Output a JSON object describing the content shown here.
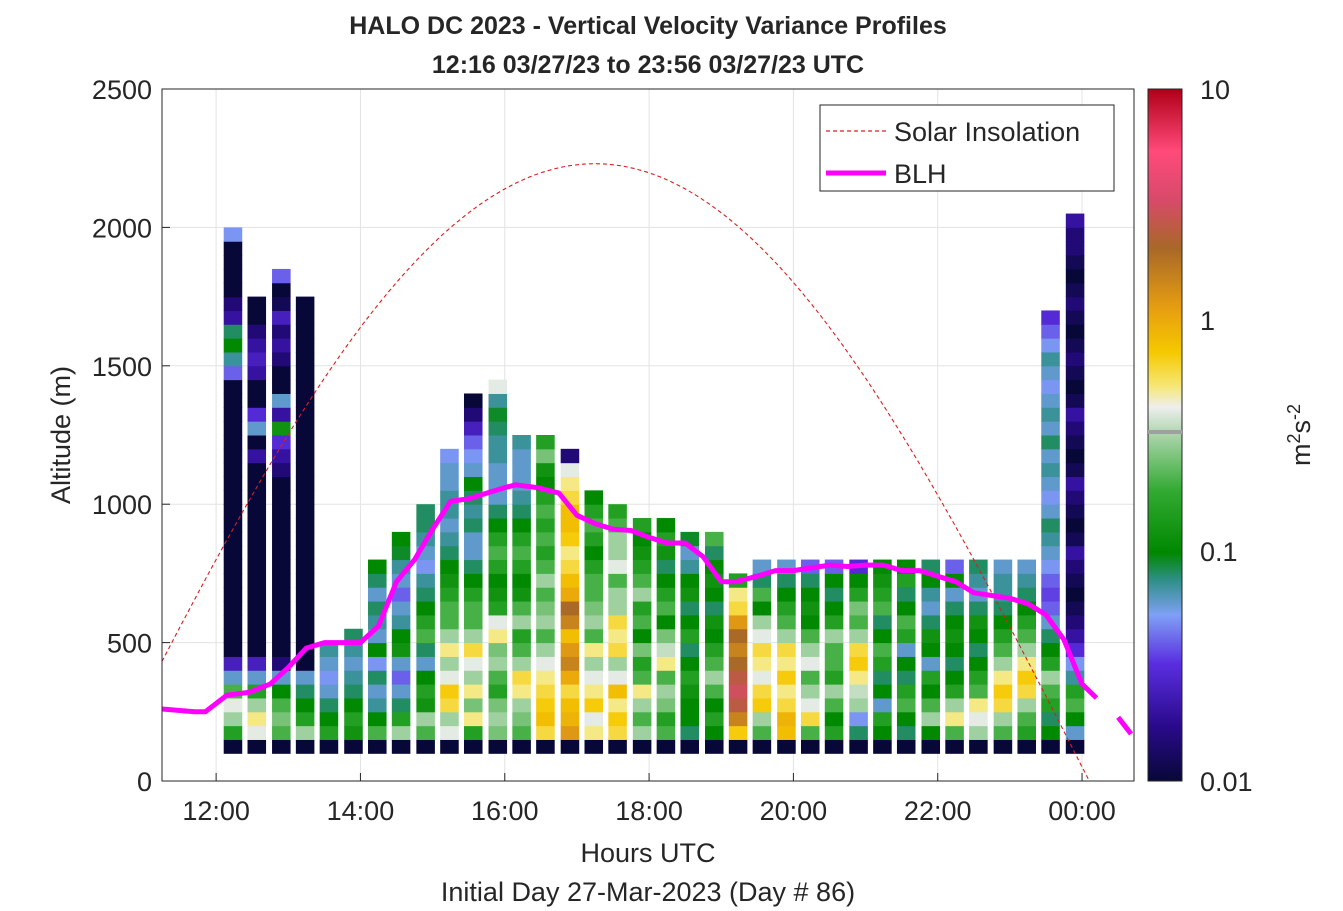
{
  "chart_data": {
    "type": "heatmap",
    "title": "HALO DC 2023 - Vertical Velocity Variance Profiles",
    "subtitle": "12:16 03/27/23 to 23:56 03/27/23  UTC",
    "xlabel": "Hours UTC",
    "xlabel2": "Initial Day 27-Mar-2023 (Day # 86)",
    "ylabel": "Altitude (m)",
    "colorbar_label_base": "m",
    "colorbar_label_sup1": "2",
    "colorbar_label_mid": "s",
    "colorbar_label_sup2": "-2",
    "colorbar_scale": "log",
    "colorbar_range": [
      0.01,
      10
    ],
    "colorbar_ticks": [
      "10",
      "1",
      "0.1",
      "0.01"
    ],
    "x_range_hours": [
      11.25,
      24.72
    ],
    "x_ticks": [
      {
        "hour": 12,
        "label": "12:00"
      },
      {
        "hour": 14,
        "label": "14:00"
      },
      {
        "hour": 16,
        "label": "16:00"
      },
      {
        "hour": 18,
        "label": "18:00"
      },
      {
        "hour": 20,
        "label": "20:00"
      },
      {
        "hour": 22,
        "label": "22:00"
      },
      {
        "hour": 24,
        "label": "00:00"
      }
    ],
    "ylim": [
      0,
      2500
    ],
    "y_ticks": [
      "0",
      "500",
      "1000",
      "1500",
      "2000",
      "2500"
    ],
    "grid": true,
    "legend_position": "top-right",
    "legend": [
      "Solar Insolation",
      "BLH"
    ],
    "series": [
      {
        "name": "BLH",
        "color": "#ff00ff",
        "x": [
          11.25,
          11.7,
          11.85,
          12.0,
          12.15,
          12.45,
          12.75,
          13.0,
          13.25,
          13.5,
          13.75,
          14.0,
          14.25,
          14.5,
          14.75,
          15.0,
          15.25,
          15.5,
          15.75,
          16.0,
          16.15,
          16.45,
          16.75,
          17.0,
          17.25,
          17.5,
          17.75,
          18.0,
          18.25,
          18.5,
          18.75,
          19.0,
          19.2,
          19.5,
          19.75,
          20.0,
          20.25,
          20.5,
          20.75,
          21.0,
          21.25,
          21.5,
          21.75,
          22.0,
          22.25,
          22.5,
          22.75,
          23.0,
          23.25,
          23.5,
          23.75,
          24.0,
          24.2
        ],
        "y": [
          260,
          250,
          250,
          280,
          310,
          320,
          350,
          410,
          480,
          500,
          500,
          500,
          560,
          720,
          800,
          910,
          1010,
          1020,
          1040,
          1060,
          1070,
          1060,
          1040,
          960,
          930,
          910,
          905,
          880,
          860,
          860,
          810,
          720,
          720,
          740,
          760,
          760,
          770,
          780,
          775,
          780,
          780,
          760,
          760,
          740,
          720,
          680,
          670,
          660,
          640,
          600,
          510,
          350,
          300
        ]
      },
      {
        "name": "Solar Insolation",
        "color": "#d62020",
        "peak_hour": 17.25,
        "peak_altitude": 2230,
        "zero_after_hour": 24.1
      }
    ],
    "cells_note": "Each column is a 15-minute profile; values in m^2 s^-2 from the 100 m level upward, 50 m bins.",
    "columns": [
      {
        "t": 12.23,
        "v": [
          0.01,
          0.15,
          0.3,
          0.4,
          0.2,
          0.06,
          0.025,
          0.01,
          0.01,
          0.01,
          0.01,
          0.01,
          0.01,
          0.01,
          0.01,
          0.01,
          0.01,
          0.01,
          0.01,
          0.01,
          0.01,
          0.01,
          0.01,
          0.01,
          0.01,
          0.01,
          0.01,
          0.04,
          0.07,
          0.1,
          0.08,
          0.02,
          0.015,
          0.01,
          0.01,
          0.01,
          0.01,
          0.05
        ]
      },
      {
        "t": 12.56,
        "v": [
          0.01,
          0.4,
          0.5,
          0.3,
          0.15,
          0.06,
          0.025,
          0.01,
          0.01,
          0.01,
          0.01,
          0.01,
          0.01,
          0.01,
          0.01,
          0.01,
          0.01,
          0.01,
          0.01,
          0.01,
          0.01,
          0.02,
          0.01,
          0.06,
          0.03,
          0.01,
          0.01,
          0.02,
          0.025,
          0.02,
          0.015,
          0.01,
          0.01
        ]
      },
      {
        "t": 12.9,
        "v": [
          0.01,
          0.2,
          0.25,
          0.2,
          0.1,
          0.06,
          0.015,
          0.01,
          0.01,
          0.01,
          0.01,
          0.01,
          0.01,
          0.01,
          0.01,
          0.01,
          0.01,
          0.01,
          0.01,
          0.01,
          0.015,
          0.02,
          0.03,
          0.12,
          0.02,
          0.06,
          0.01,
          0.01,
          0.015,
          0.02,
          0.015,
          0.025,
          0.012,
          0.01,
          0.04
        ]
      },
      {
        "t": 13.23,
        "v": [
          0.01,
          0.3,
          0.15,
          0.1,
          0.08,
          0.06,
          0.01,
          0.01,
          0.01,
          0.01,
          0.01,
          0.01,
          0.01,
          0.01,
          0.01,
          0.01,
          0.01,
          0.01,
          0.01,
          0.01,
          0.01,
          0.01,
          0.01,
          0.01,
          0.01,
          0.01,
          0.01,
          0.01,
          0.01,
          0.01,
          0.01,
          0.01,
          0.01
        ]
      },
      {
        "t": 13.56,
        "v": [
          0.01,
          0.15,
          0.1,
          0.08,
          0.06,
          0.05,
          0.06,
          0.07
        ]
      },
      {
        "t": 13.9,
        "v": [
          0.01,
          0.12,
          0.15,
          0.1,
          0.08,
          0.07,
          0.06,
          0.07,
          0.08
        ]
      },
      {
        "t": 14.23,
        "v": [
          0.01,
          0.2,
          0.1,
          0.07,
          0.06,
          0.08,
          0.05,
          0.1,
          0.06,
          0.07,
          0.08,
          0.06,
          0.08,
          0.1
        ]
      },
      {
        "t": 14.56,
        "v": [
          0.01,
          0.3,
          0.15,
          0.08,
          0.06,
          0.04,
          0.06,
          0.12,
          0.1,
          0.07,
          0.06,
          0.04,
          0.06,
          0.07,
          0.09,
          0.1
        ]
      },
      {
        "t": 14.9,
        "v": [
          0.01,
          0.2,
          0.3,
          0.12,
          0.15,
          0.1,
          0.06,
          0.08,
          0.2,
          0.15,
          0.1,
          0.08,
          0.07,
          0.05,
          0.06,
          0.07,
          0.08,
          0.08
        ]
      },
      {
        "t": 15.23,
        "v": [
          0.01,
          0.4,
          0.3,
          0.6,
          0.7,
          0.4,
          0.3,
          0.5,
          0.3,
          0.2,
          0.2,
          0.15,
          0.12,
          0.1,
          0.08,
          0.07,
          0.06,
          0.07,
          0.07,
          0.06,
          0.06,
          0.05
        ]
      },
      {
        "t": 15.56,
        "v": [
          0.01,
          0.15,
          0.5,
          0.25,
          0.5,
          0.3,
          0.4,
          0.6,
          0.3,
          0.2,
          0.2,
          0.15,
          0.1,
          0.08,
          0.06,
          0.06,
          0.08,
          0.07,
          0.08,
          0.1,
          0.06,
          0.05,
          0.04,
          0.025,
          0.015,
          0.01
        ]
      },
      {
        "t": 15.9,
        "v": [
          0.01,
          0.25,
          0.3,
          0.25,
          0.15,
          0.2,
          0.3,
          0.25,
          0.5,
          0.4,
          0.15,
          0.12,
          0.1,
          0.15,
          0.2,
          0.15,
          0.1,
          0.08,
          0.06,
          0.06,
          0.06,
          0.07,
          0.07,
          0.08,
          0.09,
          0.07,
          0.4
        ]
      },
      {
        "t": 16.23,
        "v": [
          0.01,
          0.2,
          0.25,
          0.3,
          0.5,
          0.6,
          0.3,
          0.2,
          0.15,
          0.3,
          0.2,
          0.12,
          0.1,
          0.15,
          0.2,
          0.15,
          0.1,
          0.08,
          0.07,
          0.06,
          0.06,
          0.06,
          0.07
        ]
      },
      {
        "t": 16.56,
        "v": [
          0.01,
          0.6,
          0.8,
          0.7,
          0.6,
          0.5,
          0.4,
          0.3,
          0.2,
          0.3,
          0.25,
          0.2,
          0.3,
          0.2,
          0.15,
          0.2,
          0.15,
          0.2,
          0.15,
          0.1,
          0.12,
          0.25,
          0.15
        ]
      },
      {
        "t": 16.9,
        "v": [
          0.01,
          1.2,
          0.9,
          0.8,
          0.6,
          1.0,
          1.5,
          1.2,
          0.8,
          1.5,
          2.0,
          1.0,
          0.8,
          0.6,
          0.5,
          0.7,
          0.8,
          0.8,
          0.6,
          0.5,
          0.4,
          0.015
        ]
      },
      {
        "t": 17.23,
        "v": [
          0.01,
          0.5,
          0.4,
          0.7,
          0.5,
          0.4,
          0.3,
          0.5,
          0.2,
          0.3,
          0.25,
          0.2,
          0.2,
          0.15,
          0.1,
          0.15,
          0.2,
          0.15,
          0.1
        ]
      },
      {
        "t": 17.56,
        "v": [
          0.01,
          0.6,
          0.7,
          0.5,
          0.8,
          0.4,
          0.3,
          0.6,
          0.5,
          0.6,
          0.3,
          0.3,
          0.2,
          0.4,
          0.3,
          0.3,
          0.2,
          0.15
        ]
      },
      {
        "t": 17.9,
        "v": [
          0.01,
          0.3,
          0.2,
          0.3,
          0.5,
          0.2,
          0.15,
          0.25,
          0.1,
          0.2,
          0.15,
          0.3,
          0.2,
          0.15,
          0.12,
          0.1,
          0.15
        ]
      },
      {
        "t": 18.23,
        "v": [
          0.01,
          0.2,
          0.15,
          0.25,
          0.3,
          0.2,
          0.5,
          0.35,
          0.25,
          0.1,
          0.2,
          0.15,
          0.1,
          0.08,
          0.12,
          0.15,
          0.1
        ]
      },
      {
        "t": 18.56,
        "v": [
          0.01,
          0.08,
          0.1,
          0.1,
          0.12,
          0.15,
          0.1,
          0.08,
          0.15,
          0.1,
          0.08,
          0.12,
          0.1,
          0.07,
          0.06,
          0.09
        ]
      },
      {
        "t": 18.9,
        "v": [
          0.01,
          0.1,
          0.15,
          0.1,
          0.2,
          0.3,
          0.2,
          0.15,
          0.1,
          0.12,
          0.08,
          0.1,
          0.12,
          0.1,
          0.08,
          0.2
        ]
      },
      {
        "t": 19.23,
        "v": [
          0.01,
          0.7,
          1.5,
          2.5,
          3.0,
          2.5,
          2.0,
          1.5,
          2.0,
          1.2,
          0.6,
          0.5,
          0.15
        ]
      },
      {
        "t": 19.56,
        "v": [
          0.01,
          0.2,
          0.3,
          0.7,
          0.6,
          0.4,
          0.5,
          0.6,
          0.4,
          0.3,
          0.1,
          0.2,
          0.08,
          0.06
        ]
      },
      {
        "t": 19.9,
        "v": [
          0.01,
          0.8,
          0.9,
          0.6,
          0.5,
          0.7,
          0.5,
          0.6,
          0.3,
          0.2,
          0.15,
          0.1,
          0.08,
          0.06
        ]
      },
      {
        "t": 20.23,
        "v": [
          0.01,
          0.2,
          0.6,
          0.4,
          0.3,
          0.2,
          0.4,
          0.3,
          0.2,
          0.1,
          0.12,
          0.1,
          0.08,
          0.04
        ]
      },
      {
        "t": 20.56,
        "v": [
          0.01,
          0.15,
          0.1,
          0.2,
          0.3,
          0.15,
          0.2,
          0.2,
          0.3,
          0.15,
          0.1,
          0.08,
          0.1,
          0.04
        ]
      },
      {
        "t": 20.9,
        "v": [
          0.01,
          0.08,
          0.05,
          0.3,
          0.35,
          0.5,
          0.7,
          0.6,
          0.3,
          0.2,
          0.25,
          0.15,
          0.1,
          0.03
        ]
      },
      {
        "t": 21.23,
        "v": [
          0.01,
          0.1,
          0.15,
          0.06,
          0.1,
          0.08,
          0.15,
          0.2,
          0.1,
          0.08,
          0.2,
          0.15,
          0.12,
          0.1
        ]
      },
      {
        "t": 21.56,
        "v": [
          0.01,
          0.08,
          0.1,
          0.2,
          0.15,
          0.08,
          0.1,
          0.06,
          0.15,
          0.2,
          0.1,
          0.08,
          0.15,
          0.1
        ]
      },
      {
        "t": 21.9,
        "v": [
          0.01,
          0.1,
          0.3,
          0.2,
          0.1,
          0.15,
          0.06,
          0.1,
          0.12,
          0.08,
          0.06,
          0.07,
          0.1,
          0.08
        ]
      },
      {
        "t": 22.23,
        "v": [
          0.01,
          0.2,
          0.5,
          0.3,
          0.15,
          0.1,
          0.08,
          0.1,
          0.12,
          0.1,
          0.08,
          0.06,
          0.1,
          0.04
        ]
      },
      {
        "t": 22.56,
        "v": [
          0.01,
          0.3,
          0.4,
          0.5,
          0.2,
          0.15,
          0.1,
          0.08,
          0.1,
          0.12,
          0.08,
          0.06,
          0.07,
          0.08
        ]
      },
      {
        "t": 22.9,
        "v": [
          0.01,
          0.2,
          0.3,
          0.6,
          0.7,
          0.5,
          0.3,
          0.2,
          0.15,
          0.1,
          0.08,
          0.07,
          0.07,
          0.06
        ]
      },
      {
        "t": 23.23,
        "v": [
          0.01,
          0.15,
          0.2,
          0.3,
          0.6,
          0.7,
          0.5,
          0.3,
          0.2,
          0.15,
          0.1,
          0.08,
          0.07,
          0.06
        ]
      },
      {
        "t": 23.56,
        "v": [
          0.01,
          0.1,
          0.08,
          0.15,
          0.2,
          0.3,
          0.15,
          0.1,
          0.08,
          0.06,
          0.04,
          0.035,
          0.04,
          0.05,
          0.06,
          0.07,
          0.08,
          0.06,
          0.05,
          0.06,
          0.07,
          0.06,
          0.08,
          0.06,
          0.07,
          0.06,
          0.05,
          0.06,
          0.07,
          0.05,
          0.04,
          0.03
        ]
      },
      {
        "t": 23.9,
        "v": [
          0.01,
          0.06,
          0.1,
          0.2,
          0.15,
          0.07,
          0.05,
          0.03,
          0.02,
          0.015,
          0.012,
          0.01,
          0.012,
          0.015,
          0.02,
          0.012,
          0.01,
          0.012,
          0.015,
          0.02,
          0.012,
          0.01,
          0.012,
          0.015,
          0.02,
          0.012,
          0.01,
          0.012,
          0.015,
          0.012,
          0.01,
          0.012,
          0.015,
          0.012,
          0.01,
          0.012,
          0.015,
          0.015,
          0.02
        ]
      }
    ]
  }
}
